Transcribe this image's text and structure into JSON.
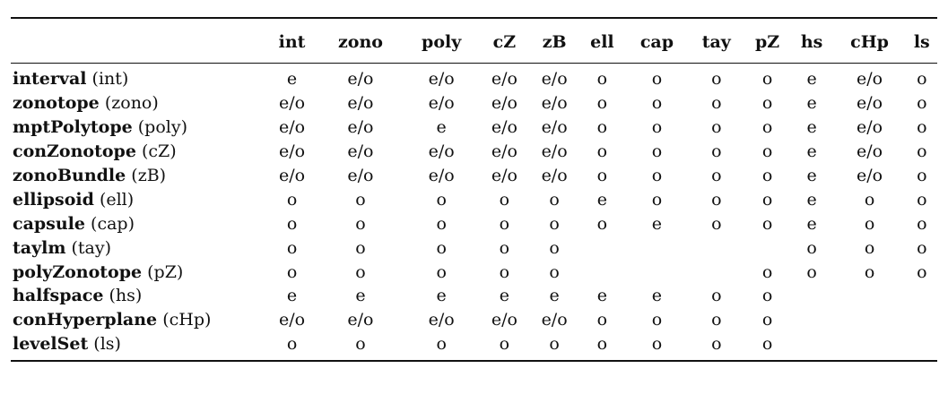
{
  "columns": [
    "int",
    "zono",
    "poly",
    "cZ",
    "zB",
    "ell",
    "cap",
    "tay",
    "pZ",
    "hs",
    "cHp",
    "ls"
  ],
  "rows": [
    {
      "name": "interval",
      "abbr": "(int)",
      "cells": [
        "e",
        "e/o",
        "e/o",
        "e/o",
        "e/o",
        "o",
        "o",
        "o",
        "o",
        "e",
        "e/o",
        "o"
      ]
    },
    {
      "name": "zonotope",
      "abbr": "(zono)",
      "cells": [
        "e/o",
        "e/o",
        "e/o",
        "e/o",
        "e/o",
        "o",
        "o",
        "o",
        "o",
        "e",
        "e/o",
        "o"
      ]
    },
    {
      "name": "mptPolytope",
      "abbr": "(poly)",
      "cells": [
        "e/o",
        "e/o",
        "e",
        "e/o",
        "e/o",
        "o",
        "o",
        "o",
        "o",
        "e",
        "e/o",
        "o"
      ]
    },
    {
      "name": "conZonotope",
      "abbr": "(cZ)",
      "cells": [
        "e/o",
        "e/o",
        "e/o",
        "e/o",
        "e/o",
        "o",
        "o",
        "o",
        "o",
        "e",
        "e/o",
        "o"
      ]
    },
    {
      "name": "zonoBundle",
      "abbr": "(zB)",
      "cells": [
        "e/o",
        "e/o",
        "e/o",
        "e/o",
        "e/o",
        "o",
        "o",
        "o",
        "o",
        "e",
        "e/o",
        "o"
      ]
    },
    {
      "name": "ellipsoid",
      "abbr": "(ell)",
      "cells": [
        "o",
        "o",
        "o",
        "o",
        "o",
        "e",
        "o",
        "o",
        "o",
        "e",
        "o",
        "o"
      ]
    },
    {
      "name": "capsule",
      "abbr": "(cap)",
      "cells": [
        "o",
        "o",
        "o",
        "o",
        "o",
        "o",
        "e",
        "o",
        "o",
        "e",
        "o",
        "o"
      ]
    },
    {
      "name": "taylm",
      "abbr": "(tay)",
      "cells": [
        "o",
        "o",
        "o",
        "o",
        "o",
        "",
        "",
        "",
        "",
        "o",
        "o",
        "o"
      ]
    },
    {
      "name": "polyZonotope",
      "abbr": "(pZ)",
      "cells": [
        "o",
        "o",
        "o",
        "o",
        "o",
        "",
        "",
        "",
        "o",
        "o",
        "o",
        "o"
      ]
    },
    {
      "name": "halfspace",
      "abbr": "(hs)",
      "cells": [
        "e",
        "e",
        "e",
        "e",
        "e",
        "e",
        "e",
        "o",
        "o",
        "",
        "",
        ""
      ]
    },
    {
      "name": "conHyperplane",
      "abbr": "(cHp)",
      "cells": [
        "e/o",
        "e/o",
        "e/o",
        "e/o",
        "e/o",
        "o",
        "o",
        "o",
        "o",
        "",
        "",
        ""
      ]
    },
    {
      "name": "levelSet",
      "abbr": "(ls)",
      "cells": [
        "o",
        "o",
        "o",
        "o",
        "o",
        "o",
        "o",
        "o",
        "o",
        "",
        "",
        ""
      ]
    }
  ]
}
